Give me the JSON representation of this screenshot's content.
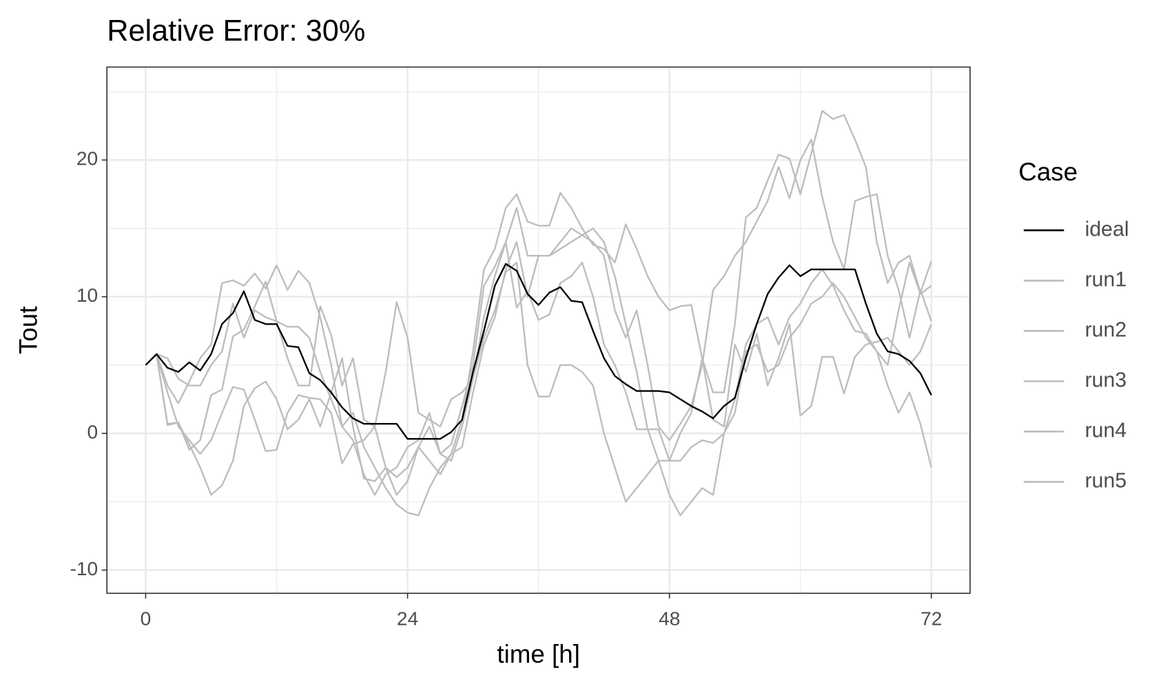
{
  "chart_data": {
    "type": "line",
    "title": "Relative Error: 30%",
    "x_label": "time [h]",
    "y_label": "Tout",
    "legend_title": "Case",
    "legend_position": "right",
    "grid": true,
    "x": [
      0,
      1,
      2,
      3,
      4,
      5,
      6,
      7,
      8,
      9,
      10,
      11,
      12,
      13,
      14,
      15,
      16,
      17,
      18,
      19,
      20,
      21,
      22,
      23,
      24,
      25,
      26,
      27,
      28,
      29,
      30,
      31,
      32,
      33,
      34,
      35,
      36,
      37,
      38,
      39,
      40,
      41,
      42,
      43,
      44,
      45,
      46,
      47,
      48,
      49,
      50,
      51,
      52,
      53,
      54,
      55,
      56,
      57,
      58,
      59,
      60,
      61,
      62,
      63,
      64,
      65,
      66,
      67,
      68,
      69,
      70,
      71,
      72
    ],
    "xlim": [
      -3.55,
      75.55
    ],
    "xticks": [
      0,
      24,
      48,
      72
    ],
    "x_minor_grid": [
      12,
      36,
      60
    ],
    "ylim": [
      -11.7,
      26.8
    ],
    "yticks": [
      -10,
      0,
      10,
      20
    ],
    "y_minor_grid": [
      -5,
      5,
      15,
      25
    ],
    "series": [
      {
        "name": "ideal",
        "color": "#000000",
        "values": [
          5,
          5.8,
          4.8,
          4.5,
          5.2,
          4.6,
          5.8,
          8,
          8.8,
          10.4,
          8.3,
          8,
          8,
          6.4,
          6.3,
          4.4,
          3.9,
          3,
          1.9,
          1.1,
          0.7,
          0.7,
          0.7,
          0.7,
          -0.4,
          -0.4,
          -0.4,
          -0.4,
          0.1,
          1,
          4.5,
          7.5,
          10.8,
          12.4,
          11.9,
          10.2,
          9.4,
          10.3,
          10.7,
          9.7,
          9.6,
          7.5,
          5.5,
          4.2,
          3.6,
          3.1,
          3.1,
          3.1,
          3,
          2.5,
          2,
          1.6,
          1.1,
          2,
          2.6,
          5.5,
          8,
          10.2,
          11.4,
          12.3,
          11.5,
          12,
          12,
          12,
          12,
          12,
          9.5,
          7.3,
          6,
          5.8,
          5.3,
          4.4,
          2.8
        ]
      },
      {
        "name": "run1",
        "color": "#bdbdbd",
        "values": [
          5,
          5.8,
          3.5,
          2.2,
          3.8,
          5.5,
          6.5,
          11,
          11.2,
          10.8,
          11.7,
          10.6,
          12.3,
          10.5,
          11.9,
          11,
          8.5,
          5,
          0.5,
          1.5,
          -1,
          -2.5,
          -4,
          -5.2,
          -5.8,
          -6,
          -4,
          -2.5,
          -1.5,
          1,
          6,
          12,
          13.5,
          16.5,
          17.5,
          15.5,
          15.2,
          15.2,
          17.6,
          16.5,
          15,
          13.8,
          13.5,
          12.5,
          15.3,
          13.5,
          11.5,
          10,
          9,
          9.3,
          9.4,
          5.5,
          3,
          3,
          8,
          15.8,
          16.5,
          18.5,
          20.4,
          20.1,
          17.5,
          20.5,
          23.6,
          23,
          23.3,
          21.5,
          19.5,
          14,
          11,
          12.5,
          13,
          10.3,
          12.6
        ]
      },
      {
        "name": "run2",
        "color": "#bdbdbd",
        "values": [
          5,
          5.8,
          0.6,
          0.8,
          -1.2,
          -0.5,
          2.8,
          3.2,
          7.1,
          7.6,
          9.3,
          11.1,
          8.2,
          7.8,
          7.8,
          7,
          4.5,
          2.5,
          0.5,
          -0.5,
          -3,
          -4.5,
          -3,
          -2.5,
          -1,
          -0.5,
          1.5,
          -1.5,
          -0.8,
          2,
          5,
          10.8,
          12.2,
          14,
          9.2,
          10.4,
          8.3,
          8.7,
          11,
          11.5,
          12.5,
          10,
          6.5,
          5,
          3,
          0.3,
          0.3,
          -2,
          -4.5,
          -6,
          -5,
          -4,
          -4.5,
          0,
          2.5,
          6.5,
          8,
          8.5,
          6.5,
          8.5,
          9.5,
          11,
          12,
          10.8,
          9,
          7.5,
          7.3,
          6,
          3.5,
          1.5,
          3,
          0.7,
          -2.5
        ]
      },
      {
        "name": "run3",
        "color": "#bdbdbd",
        "values": [
          5,
          5.8,
          3,
          0.5,
          -0.5,
          -1.5,
          -0.5,
          1.5,
          3.4,
          3.2,
          1,
          -1.3,
          -1.2,
          1.5,
          2.8,
          2.6,
          2.5,
          1.5,
          -2.2,
          -0.8,
          -0.5,
          0.5,
          -2.5,
          -4.5,
          -3.5,
          -1,
          0.5,
          -1.5,
          -2,
          0.5,
          4,
          7,
          9,
          11.8,
          12.5,
          5,
          2.7,
          2.7,
          5,
          5,
          4.5,
          3.5,
          0,
          -2.5,
          -5,
          -4,
          -3,
          -2,
          -2,
          0,
          1.5,
          5.5,
          1,
          0.5,
          6.5,
          4.5,
          7.3,
          3.5,
          5.5,
          8,
          1.3,
          2,
          5.6,
          5.6,
          2.9,
          5.6,
          6.5,
          6.7,
          7,
          6,
          5,
          6,
          8
        ]
      },
      {
        "name": "run4",
        "color": "#bdbdbd",
        "values": [
          5,
          5.8,
          0.7,
          0.8,
          -0.8,
          -2.5,
          -4.5,
          -3.8,
          -2,
          2,
          3.3,
          3.8,
          2.5,
          0.3,
          1,
          2.5,
          0.5,
          3,
          5.5,
          0.5,
          -3.3,
          -3.5,
          -2.5,
          -3.2,
          -2.5,
          -1,
          -2,
          -3,
          -1.5,
          -1,
          3,
          6.5,
          8.5,
          12,
          14,
          10,
          13,
          13,
          13.5,
          14,
          14.5,
          15,
          14,
          11.5,
          8,
          4.5,
          0.3,
          0.3,
          -2,
          -2,
          -1,
          -0.5,
          -0.7,
          0,
          1.5,
          6,
          6.5,
          4.5,
          5,
          7,
          8,
          9.5,
          10,
          11,
          10,
          8.5,
          7,
          6,
          5,
          9,
          12.5,
          10.2,
          10.8
        ]
      },
      {
        "name": "run5",
        "color": "#bdbdbd",
        "values": [
          5,
          5.8,
          5.5,
          4,
          3.5,
          3.5,
          5,
          6,
          9.5,
          7,
          9,
          8.5,
          8.2,
          5.5,
          3.5,
          3.5,
          9.3,
          7.2,
          3.5,
          5.5,
          1,
          0.5,
          4.5,
          9.6,
          7,
          1.5,
          1,
          0.5,
          2.5,
          3,
          4,
          8.5,
          11.5,
          14,
          16.5,
          13,
          13,
          13,
          14,
          15,
          14.5,
          14,
          13,
          9,
          7,
          9,
          5,
          0.5,
          -0.5,
          0.7,
          2,
          5,
          10.5,
          11.5,
          13,
          14,
          15.5,
          17,
          19.5,
          17.2,
          20,
          21.5,
          17.3,
          14,
          12,
          17,
          17.3,
          17.5,
          13,
          10.5,
          7,
          10.5,
          8.2
        ]
      }
    ]
  }
}
